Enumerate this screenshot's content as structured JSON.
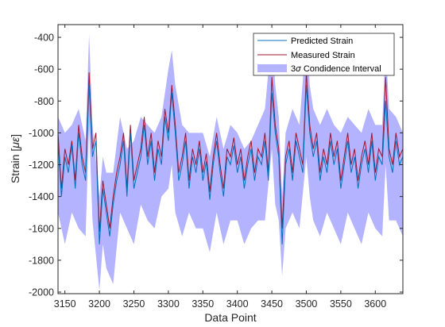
{
  "chart_data": {
    "type": "line",
    "xlabel": "Data Point",
    "ylabel": "Strain [",
    "ylabel_symbol": "με",
    "ylabel_close": "]",
    "xlim": [
      3140,
      3640
    ],
    "ylim": [
      -2010,
      -320
    ],
    "xticks": [
      3150,
      3200,
      3250,
      3300,
      3350,
      3400,
      3450,
      3500,
      3550,
      3600
    ],
    "yticks": [
      -2000,
      -1800,
      -1600,
      -1400,
      -1200,
      -1000,
      -800,
      -600,
      -400
    ],
    "grid": false,
    "legend_position": "top-right",
    "legend": {
      "predicted": "Predicted Strain",
      "measured": "Measured Strain",
      "band_prefix": "3",
      "band_symbol": "σ",
      "band_suffix": " Condidence Interval"
    },
    "colors": {
      "predicted": "#0072BD",
      "measured": "#A2142F",
      "band": "#B3B3FF",
      "axes": "#262626"
    },
    "series": [
      {
        "name": "Predicted Strain",
        "x": [
          3140,
          3145,
          3150,
          3155,
          3160,
          3165,
          3170,
          3175,
          3180,
          3185,
          3190,
          3195,
          3200,
          3205,
          3210,
          3215,
          3220,
          3225,
          3230,
          3235,
          3240,
          3245,
          3250,
          3255,
          3260,
          3265,
          3270,
          3275,
          3280,
          3285,
          3290,
          3295,
          3300,
          3305,
          3310,
          3315,
          3320,
          3325,
          3330,
          3335,
          3340,
          3345,
          3350,
          3355,
          3360,
          3365,
          3370,
          3375,
          3380,
          3385,
          3390,
          3395,
          3400,
          3405,
          3410,
          3415,
          3420,
          3425,
          3430,
          3435,
          3440,
          3445,
          3450,
          3455,
          3460,
          3465,
          3470,
          3475,
          3480,
          3485,
          3490,
          3495,
          3500,
          3505,
          3510,
          3515,
          3520,
          3525,
          3530,
          3535,
          3540,
          3545,
          3550,
          3555,
          3560,
          3565,
          3570,
          3575,
          3580,
          3585,
          3590,
          3595,
          3600,
          3605,
          3610,
          3615,
          3620,
          3625,
          3630,
          3635,
          3640
        ],
        "y": [
          -1050,
          -1400,
          -1150,
          -1250,
          -1080,
          -1350,
          -1000,
          -1200,
          -1300,
          -700,
          -1150,
          -1050,
          -1700,
          -1350,
          -1500,
          -1650,
          -1450,
          -1300,
          -1200,
          -1050,
          -1400,
          -1000,
          -1350,
          -1250,
          -1150,
          -950,
          -1200,
          -1050,
          -1300,
          -1100,
          -1200,
          -900,
          -1050,
          -750,
          -1000,
          -1300,
          -1200,
          -1050,
          -1350,
          -1150,
          -1250,
          -1100,
          -1300,
          -1180,
          -1420,
          -1200,
          -1050,
          -1250,
          -1400,
          -1150,
          -1200,
          -1080,
          -1250,
          -1150,
          -1350,
          -1200,
          -1100,
          -1300,
          -1150,
          -1200,
          -1050,
          -1300,
          -750,
          -1000,
          -1150,
          -1700,
          -1200,
          -1100,
          -1300,
          -1050,
          -1150,
          -1250,
          -700,
          -1000,
          -1150,
          -1050,
          -1300,
          -1150,
          -1250,
          -1050,
          -1200,
          -1100,
          -1350,
          -1200,
          -1050,
          -1250,
          -1150,
          -1350,
          -1200,
          -1100,
          -1250,
          -1050,
          -1300,
          -1150,
          -1200,
          -800,
          -1150,
          -1250,
          -1050,
          -1200,
          -1150
        ]
      },
      {
        "name": "Measured Strain",
        "x": [
          3140,
          3145,
          3150,
          3155,
          3160,
          3165,
          3170,
          3175,
          3180,
          3185,
          3190,
          3195,
          3200,
          3205,
          3210,
          3215,
          3220,
          3225,
          3230,
          3235,
          3240,
          3245,
          3250,
          3255,
          3260,
          3265,
          3270,
          3275,
          3280,
          3285,
          3290,
          3295,
          3300,
          3305,
          3310,
          3315,
          3320,
          3325,
          3330,
          3335,
          3340,
          3345,
          3350,
          3355,
          3360,
          3365,
          3370,
          3375,
          3380,
          3385,
          3390,
          3395,
          3400,
          3405,
          3410,
          3415,
          3420,
          3425,
          3430,
          3435,
          3440,
          3445,
          3450,
          3455,
          3460,
          3465,
          3470,
          3475,
          3480,
          3485,
          3490,
          3495,
          3500,
          3505,
          3510,
          3515,
          3520,
          3525,
          3530,
          3535,
          3540,
          3545,
          3550,
          3555,
          3560,
          3565,
          3570,
          3575,
          3580,
          3585,
          3590,
          3595,
          3600,
          3605,
          3610,
          3615,
          3620,
          3625,
          3630,
          3635,
          3640
        ],
        "y": [
          -1000,
          -1350,
          -1100,
          -1200,
          -1050,
          -1300,
          -950,
          -1150,
          -1250,
          -620,
          -1100,
          -1000,
          -1620,
          -1300,
          -1450,
          -1600,
          -1400,
          -1250,
          -1150,
          -1000,
          -1350,
          -950,
          -1300,
          -1200,
          -1100,
          -900,
          -1150,
          -1000,
          -1250,
          -1050,
          -1150,
          -850,
          -1000,
          -700,
          -950,
          -1250,
          -1150,
          -1000,
          -1300,
          -1100,
          -1200,
          -1050,
          -1250,
          -1130,
          -1370,
          -1150,
          -1000,
          -1200,
          -1350,
          -1100,
          -1150,
          -1030,
          -1200,
          -1100,
          -1300,
          -1150,
          -1050,
          -1250,
          -1100,
          -1150,
          -1000,
          -1250,
          -650,
          -950,
          -1100,
          -1600,
          -1150,
          -1050,
          -1250,
          -1000,
          -1100,
          -1200,
          -620,
          -950,
          -1100,
          -1000,
          -1250,
          -1100,
          -1200,
          -1000,
          -1150,
          -1050,
          -1300,
          -1150,
          -1000,
          -1200,
          -1100,
          -1300,
          -1150,
          -1050,
          -1200,
          -1000,
          -1250,
          -1100,
          -1150,
          -650,
          -1100,
          -1200,
          -1000,
          -1150,
          -1100
        ]
      },
      {
        "name": "3σ Condidence Interval",
        "x": [
          3140,
          3150,
          3160,
          3170,
          3180,
          3185,
          3190,
          3200,
          3205,
          3210,
          3220,
          3230,
          3240,
          3250,
          3260,
          3270,
          3280,
          3290,
          3300,
          3305,
          3310,
          3320,
          3330,
          3340,
          3350,
          3360,
          3370,
          3380,
          3390,
          3400,
          3410,
          3420,
          3430,
          3440,
          3450,
          3455,
          3460,
          3465,
          3470,
          3480,
          3490,
          3500,
          3505,
          3510,
          3520,
          3530,
          3540,
          3550,
          3560,
          3570,
          3580,
          3590,
          3600,
          3610,
          3615,
          3620,
          3630,
          3640
        ],
        "upper": [
          -900,
          -1000,
          -950,
          -850,
          -1050,
          -380,
          -950,
          -1400,
          -1150,
          -1250,
          -1250,
          -900,
          -1100,
          -1050,
          -900,
          -950,
          -1000,
          -900,
          -600,
          -480,
          -700,
          -950,
          -1000,
          -1000,
          -1000,
          -1150,
          -900,
          -1100,
          -950,
          -1000,
          -1100,
          -1050,
          -950,
          -850,
          -380,
          -700,
          -900,
          -1400,
          -1000,
          -850,
          -950,
          -380,
          -700,
          -850,
          -950,
          -850,
          -950,
          -1000,
          -900,
          -950,
          -1000,
          -850,
          -950,
          -950,
          -450,
          -850,
          -900,
          -1000
        ],
        "lower": [
          -1500,
          -1700,
          -1500,
          -1600,
          -1650,
          -950,
          -1550,
          -1990,
          -1700,
          -1850,
          -1950,
          -1500,
          -1600,
          -1700,
          -1450,
          -1550,
          -1600,
          -1400,
          -1350,
          -1200,
          -1500,
          -1650,
          -1500,
          -1600,
          -1600,
          -1750,
          -1500,
          -1700,
          -1550,
          -1550,
          -1700,
          -1600,
          -1550,
          -1550,
          -1100,
          -1450,
          -1550,
          -1900,
          -1600,
          -1500,
          -1600,
          -1150,
          -1400,
          -1550,
          -1650,
          -1500,
          -1600,
          -1700,
          -1500,
          -1600,
          -1700,
          -1500,
          -1600,
          -1650,
          -1200,
          -1550,
          -1550,
          -1650
        ]
      }
    ]
  }
}
